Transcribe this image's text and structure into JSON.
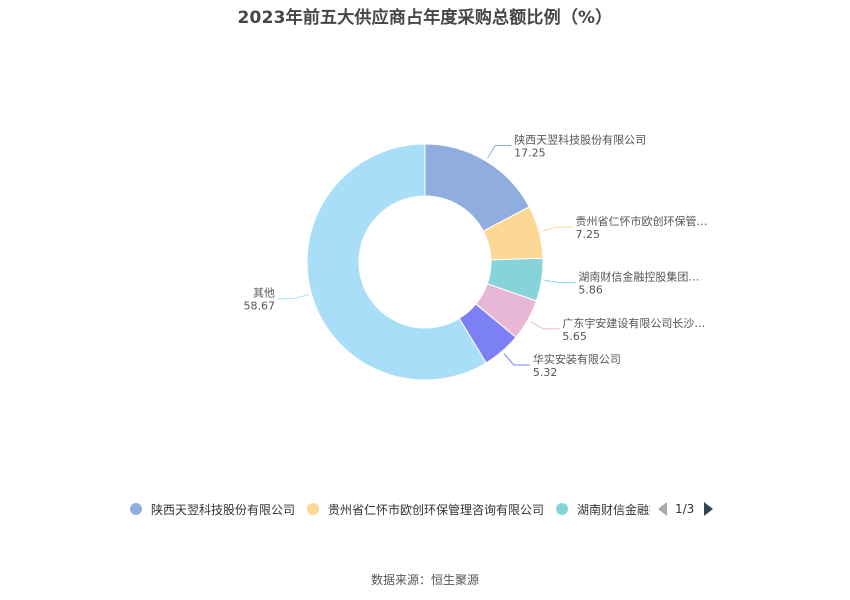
{
  "title": "2023年前五大供应商占年度采购总额比例（%）",
  "chart_data": {
    "type": "pie",
    "title": "2023年前五大供应商占年度采购总额比例（%）",
    "slices": [
      {
        "name": "陕西天翌科技股份有限公司",
        "label": "陕西天翌科技股份有限公司",
        "value": 17.25,
        "color": "#8fadde"
      },
      {
        "name": "贵州省仁怀市欧创环保管理咨询有限公司",
        "label": "贵州省仁怀市欧创环保管…",
        "value": 7.25,
        "color": "#fdd895"
      },
      {
        "name": "湖南财信金融控股集团有限公司",
        "label": "湖南财信金融控股集团…",
        "value": 5.86,
        "color": "#86d4da"
      },
      {
        "name": "广东宇安建设有限公司长沙分公司",
        "label": "广东宇安建设有限公司长沙…",
        "value": 5.65,
        "color": "#e8b7d6"
      },
      {
        "name": "华实安装有限公司",
        "label": "华实安装有限公司",
        "value": 5.32,
        "color": "#7b80f5"
      },
      {
        "name": "其他",
        "label": "其他",
        "value": 58.67,
        "color": "#a9def8"
      }
    ]
  },
  "legend": {
    "items": [
      {
        "name": "陕西天翌科技股份有限公司",
        "color": "#8fadde"
      },
      {
        "name": "贵州省仁怀市欧创环保管理咨询有限公司",
        "color": "#fdd895"
      },
      {
        "name": "湖南财信金融控股集团有限公司",
        "color": "#86d4da"
      }
    ],
    "page": "1/3"
  },
  "source": "数据来源：恒生聚源"
}
